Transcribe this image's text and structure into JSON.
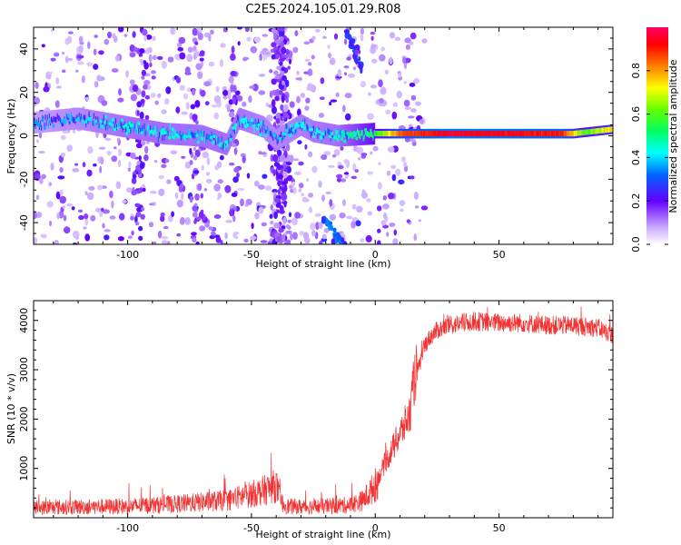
{
  "title": "C2E5.2024.105.01.29.R08",
  "chart_data": [
    {
      "type": "heatmap",
      "xlabel": "Height of straight line (km)",
      "ylabel": "Frequency (Hz)",
      "xlim": [
        -138,
        96
      ],
      "ylim": [
        -50,
        50
      ],
      "xticks": [
        -100,
        -50,
        0,
        50
      ],
      "yticks": [
        -40,
        -20,
        0,
        20,
        40
      ],
      "colorbar": {
        "label": "Normalized spectral amplitude",
        "range": [
          0,
          1
        ],
        "ticks": [
          "0.0",
          "0.2",
          "0.4",
          "0.6",
          "0.8"
        ],
        "tick_values": [
          0,
          0.2,
          0.4,
          0.6,
          0.8
        ]
      },
      "ridge": [
        {
          "x": -138,
          "freq": 6
        },
        {
          "x": -120,
          "freq": 8
        },
        {
          "x": -100,
          "freq": 4
        },
        {
          "x": -85,
          "freq": 1
        },
        {
          "x": -70,
          "freq": 0
        },
        {
          "x": -60,
          "freq": -4
        },
        {
          "x": -55,
          "freq": 8
        },
        {
          "x": -45,
          "freq": 4
        },
        {
          "x": -40,
          "freq": -2
        },
        {
          "x": -30,
          "freq": 5
        },
        {
          "x": -25,
          "freq": 2
        },
        {
          "x": -15,
          "freq": 0
        },
        {
          "x": 0,
          "freq": 1
        },
        {
          "x": 30,
          "freq": 1
        },
        {
          "x": 60,
          "freq": 1
        },
        {
          "x": 80,
          "freq": 1
        },
        {
          "x": 96,
          "freq": 3
        }
      ],
      "ridge_amplitude": [
        {
          "x": -138,
          "a": 0.25
        },
        {
          "x": -100,
          "a": 0.35
        },
        {
          "x": -60,
          "a": 0.35
        },
        {
          "x": -40,
          "a": 0.3
        },
        {
          "x": -15,
          "a": 0.35
        },
        {
          "x": 0,
          "a": 0.55
        },
        {
          "x": 10,
          "a": 0.85
        },
        {
          "x": 30,
          "a": 0.95
        },
        {
          "x": 75,
          "a": 0.9
        },
        {
          "x": 85,
          "a": 0.6
        },
        {
          "x": 96,
          "a": 0.75
        }
      ]
    },
    {
      "type": "line",
      "xlabel": "Height of straight line (km)",
      "ylabel": "SNR (10 * v/v)",
      "xlim": [
        -138,
        96
      ],
      "ylim": [
        0,
        4400
      ],
      "xticks": [
        -100,
        -50,
        0,
        50
      ],
      "yticks": [
        1000,
        2000,
        3000,
        4000
      ],
      "color": "#f03232",
      "series": [
        {
          "x": [
            -138,
            -120,
            -100,
            -80,
            -60,
            -50,
            -45,
            -40,
            -38,
            -35,
            -30,
            -20,
            -10,
            -5,
            0,
            3,
            6,
            8,
            10,
            12,
            14,
            16,
            18,
            20,
            22,
            25,
            30,
            40,
            50,
            60,
            70,
            80,
            90,
            96
          ],
          "values": [
            200,
            220,
            230,
            280,
            350,
            480,
            550,
            650,
            300,
            230,
            220,
            230,
            260,
            350,
            650,
            1000,
            1300,
            1500,
            1700,
            1900,
            2100,
            2900,
            3100,
            3500,
            3650,
            3800,
            3900,
            3980,
            3950,
            3950,
            3900,
            3900,
            3850,
            3700
          ]
        }
      ]
    }
  ]
}
